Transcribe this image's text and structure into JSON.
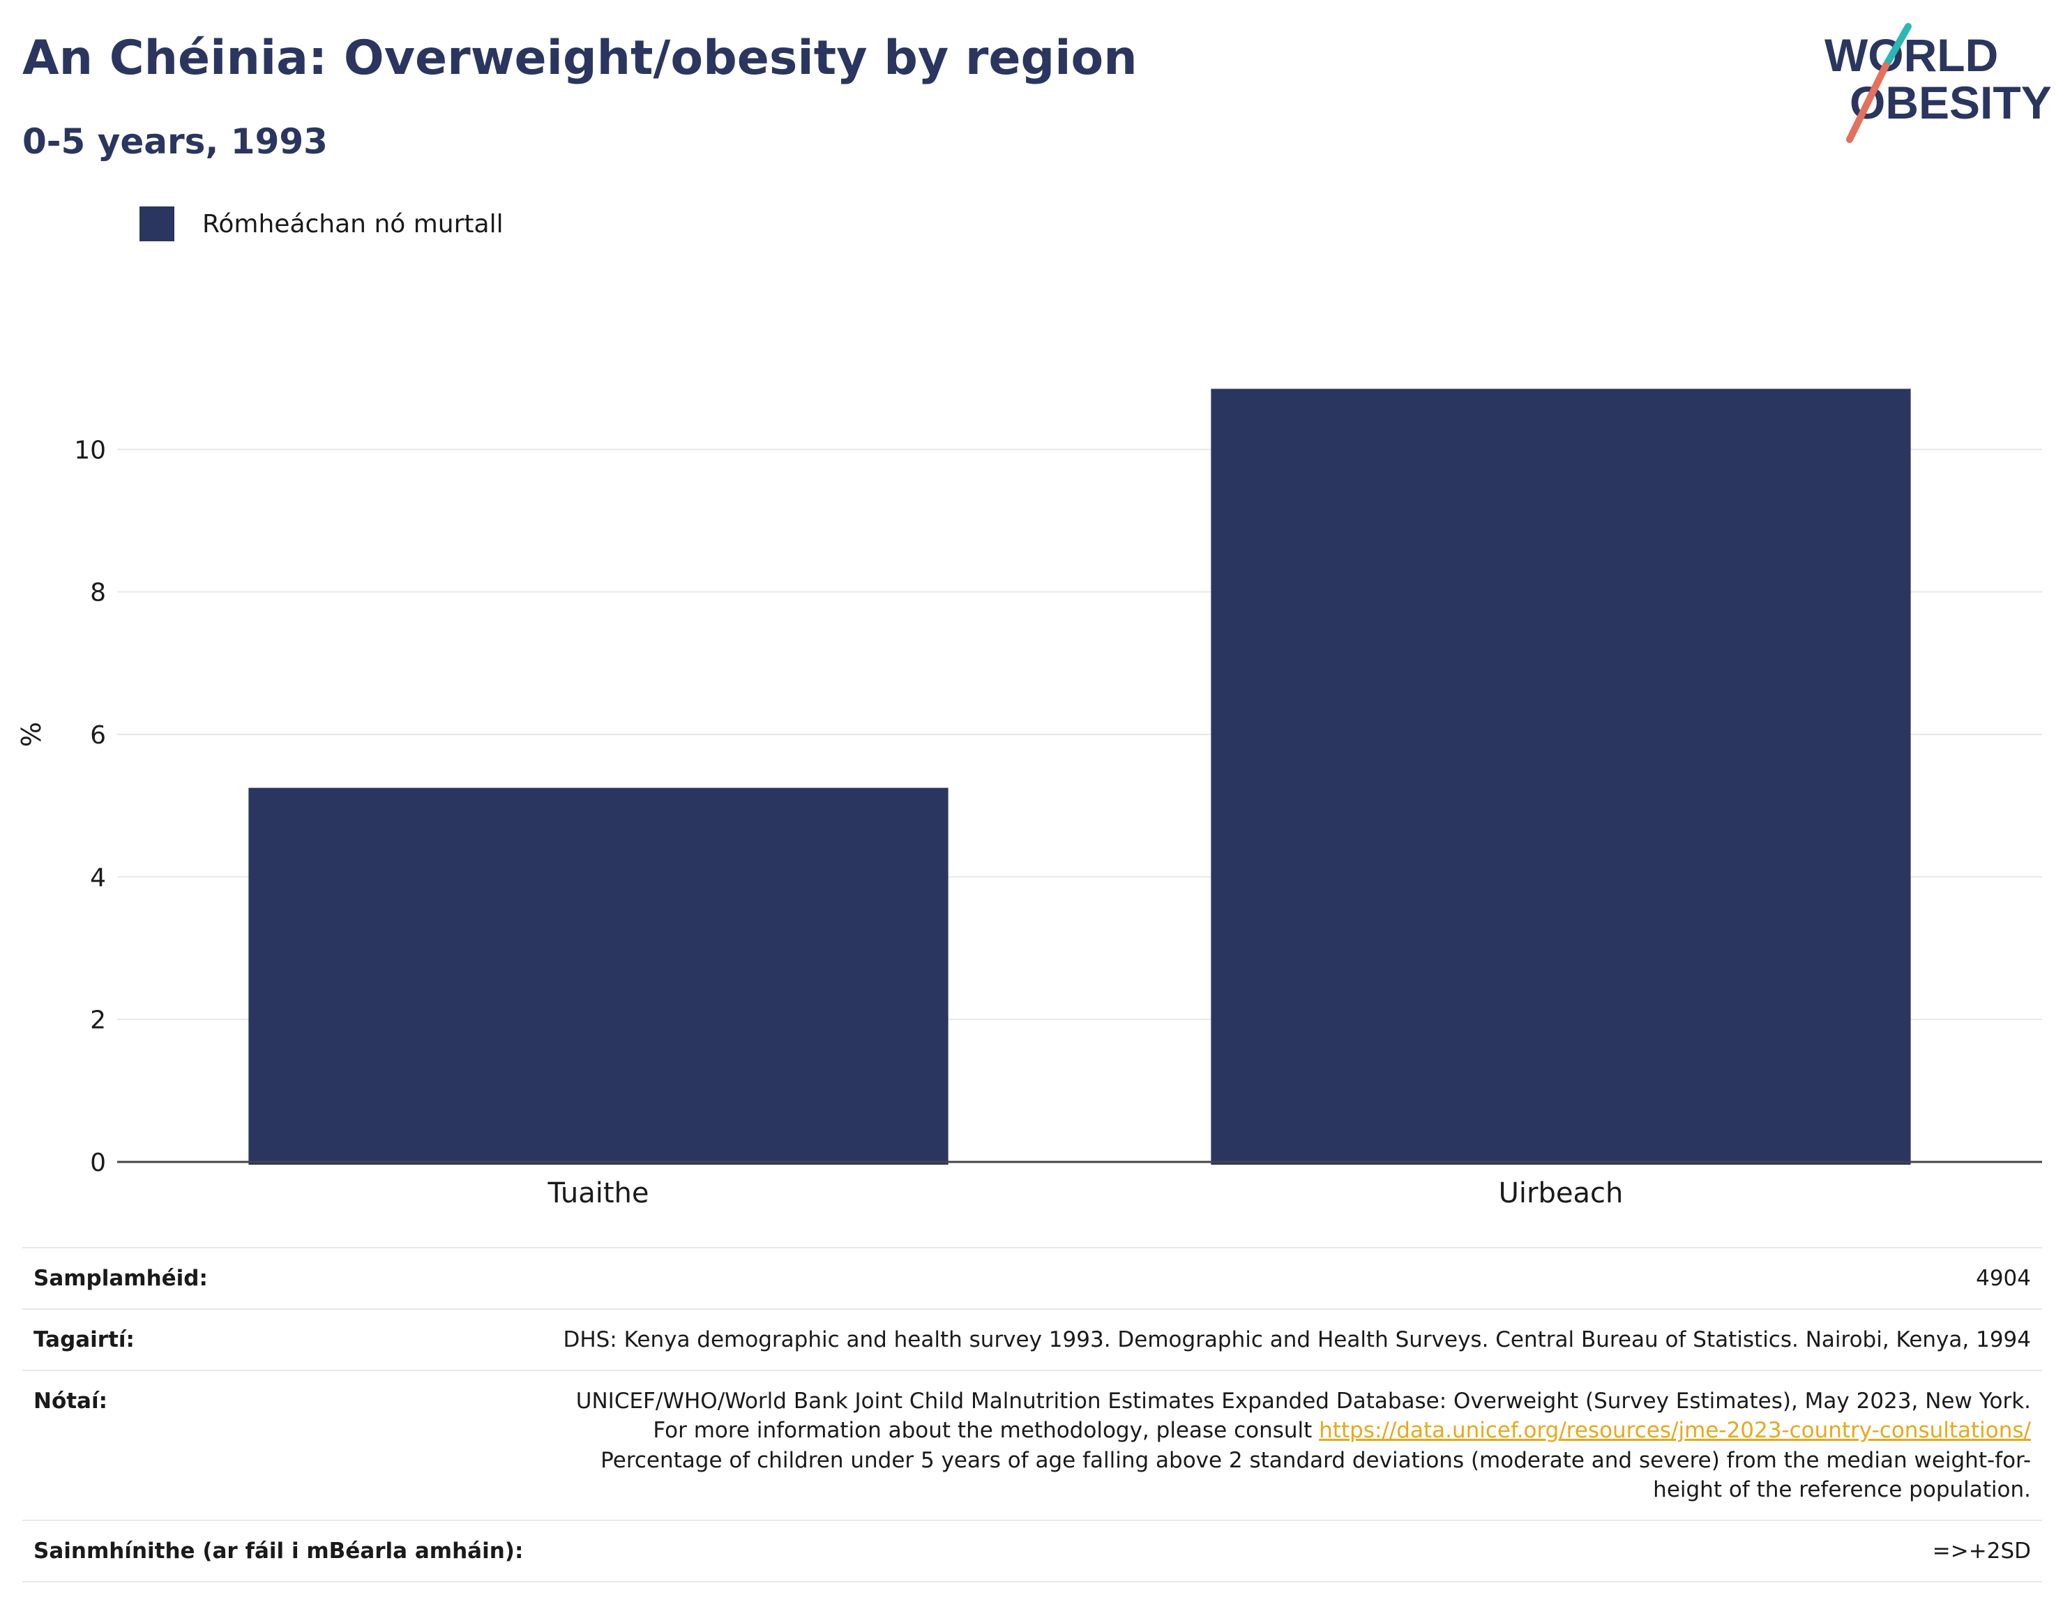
{
  "header": {
    "title": "An Chéinia: Overweight/obesity by region",
    "subtitle": "0-5 years, 1993"
  },
  "logo": {
    "line1": "WORLD",
    "line2": "OBESITY",
    "text_color": "#2a365f",
    "slash_teal": "#2ab7b5",
    "slash_coral": "#e4705d"
  },
  "legend": {
    "label": "Rómheáchan nó murtall",
    "color": "#2a365f"
  },
  "chart_data": {
    "type": "bar",
    "categories": [
      "Tuaithe",
      "Uirbeach"
    ],
    "series": [
      {
        "name": "Rómheáchan nó murtall",
        "values": [
          5.25,
          10.85
        ],
        "color": "#2a365f"
      }
    ],
    "ylabel": "%",
    "ylim": [
      0,
      12
    ],
    "yticks": [
      0,
      2,
      4,
      6,
      8,
      10
    ],
    "grid": true,
    "legend_position": "top-left"
  },
  "info": {
    "sample_size": {
      "label": "Samplamhéid:",
      "value": "4904"
    },
    "references": {
      "label": "Tagairtí:",
      "value": "DHS: Kenya demographic and health survey 1993. Demographic and Health Surveys. Central Bureau of Statistics. Nairobi, Kenya, 1994"
    },
    "notes": {
      "label": "Nótaí:",
      "text_before": "UNICEF/WHO/World Bank Joint Child Malnutrition Estimates Expanded Database: Overweight (Survey Estimates), May 2023, New York. For more information about the methodology, please consult ",
      "link": "https://data.unicef.org/resources/jme-2023-country-consultations/",
      "text_after": "Percentage of children under 5 years of age falling above 2 standard deviations (moderate and severe) from the median weight-for-height of the reference population."
    },
    "definitions": {
      "label": "Sainmhínithe (ar fáil i mBéarla amháin):",
      "value": "=>+2SD"
    }
  }
}
